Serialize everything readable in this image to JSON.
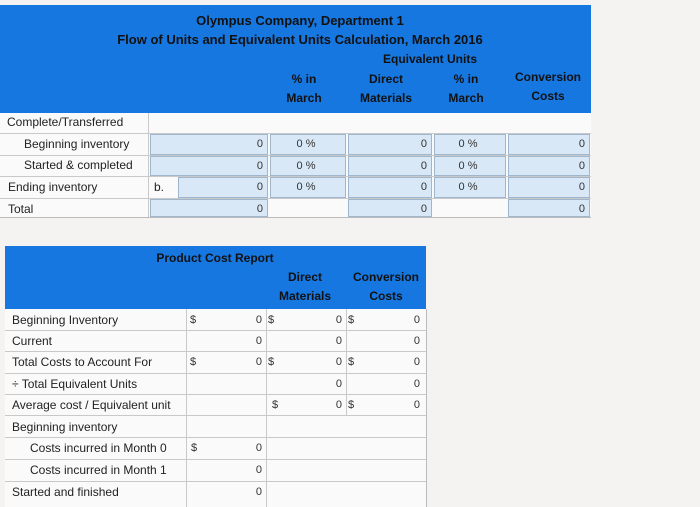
{
  "top": {
    "title1": "Olympus Company, Department 1",
    "title2": "Flow of Units and Equivalent Units Calculation, March 2016",
    "equiv_units": "Equivalent Units",
    "col_pct1_a": "% in",
    "col_pct1_b": "March",
    "col_dm_a": "Direct",
    "col_dm_b": "Materials",
    "col_pct2_a": "% in",
    "col_pct2_b": "March",
    "col_cc_a": "Conversion",
    "col_cc_b": "Costs",
    "rows": [
      {
        "label": "Complete/Transferred"
      },
      {
        "label": "Beginning inventory",
        "units": "0",
        "pct1": "0 %",
        "dm": "0",
        "pct2": "0 %",
        "cc": "0"
      },
      {
        "label": "Started & completed",
        "units": "0",
        "pct1": "0 %",
        "dm": "0",
        "pct2": "0 %",
        "cc": "0"
      },
      {
        "label": "Ending inventory",
        "extra": "b.",
        "units": "0",
        "pct1": "0 %",
        "dm": "0",
        "pct2": "0 %",
        "cc": "0"
      },
      {
        "label": "Total",
        "units": "0",
        "dm": "0",
        "cc": "0"
      }
    ]
  },
  "bottom": {
    "title": "Product Cost Report",
    "col_dm_a": "Direct",
    "col_dm_b": "Materials",
    "col_cc_a": "Conversion",
    "col_cc_b": "Costs",
    "dollar": "$",
    "rows": [
      {
        "label": "Beginning Inventory",
        "total": "0",
        "dm": "0",
        "cc": "0"
      },
      {
        "label": "Current",
        "total": "0",
        "dm": "0",
        "cc": "0"
      },
      {
        "label": "Total Costs to Account For",
        "total": "0",
        "dm": "0",
        "cc": "0"
      },
      {
        "label": "÷ Total Equivalent Units",
        "dm": "0",
        "cc": "0"
      },
      {
        "label": "Average cost / Equivalent unit",
        "dm": "0",
        "cc": "0"
      },
      {
        "label": "Beginning inventory"
      },
      {
        "label": "Costs incurred in Month 0",
        "total": "0"
      },
      {
        "label": "Costs incurred in Month 1",
        "total": "0"
      },
      {
        "label": "Started and finished",
        "total": "0"
      }
    ]
  }
}
